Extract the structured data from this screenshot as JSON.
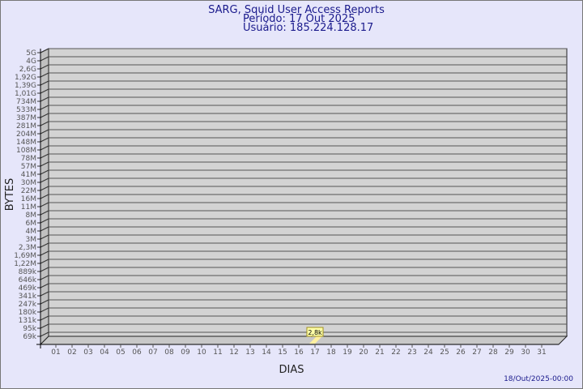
{
  "header": {
    "title": "SARG, Squid User Access Reports",
    "period": "Período: 17 Out 2025",
    "user": "Usuário: 185.224.128.17"
  },
  "footer": {
    "generated": "18/Out/2025-00:00"
  },
  "colors": {
    "background": "#e6e6fa",
    "plot": "#d3d3d3",
    "title": "#1a1a8c",
    "bar": "#fff0a0"
  },
  "chart_data": {
    "type": "bar",
    "xlabel": "DIAS",
    "ylabel": "BYTES",
    "y_scale": "log",
    "y_tick_labels": [
      "5G",
      "4G",
      "2,6G",
      "1,92G",
      "1,39G",
      "1,01G",
      "734M",
      "533M",
      "387M",
      "281M",
      "204M",
      "148M",
      "108M",
      "78M",
      "57M",
      "41M",
      "30M",
      "22M",
      "16M",
      "11M",
      "8M",
      "6M",
      "4M",
      "3M",
      "2,3M",
      "1,69M",
      "1,22M",
      "889k",
      "646k",
      "469k",
      "341k",
      "247k",
      "180k",
      "131k",
      "95k",
      "69k"
    ],
    "categories": [
      "01",
      "02",
      "03",
      "04",
      "05",
      "06",
      "07",
      "08",
      "09",
      "10",
      "11",
      "12",
      "13",
      "14",
      "15",
      "16",
      "17",
      "18",
      "19",
      "20",
      "21",
      "22",
      "23",
      "24",
      "25",
      "26",
      "27",
      "28",
      "29",
      "30",
      "31"
    ],
    "values": [
      {
        "day": "17",
        "bytes": 2800,
        "label": "2,8k"
      }
    ],
    "grid": true
  }
}
